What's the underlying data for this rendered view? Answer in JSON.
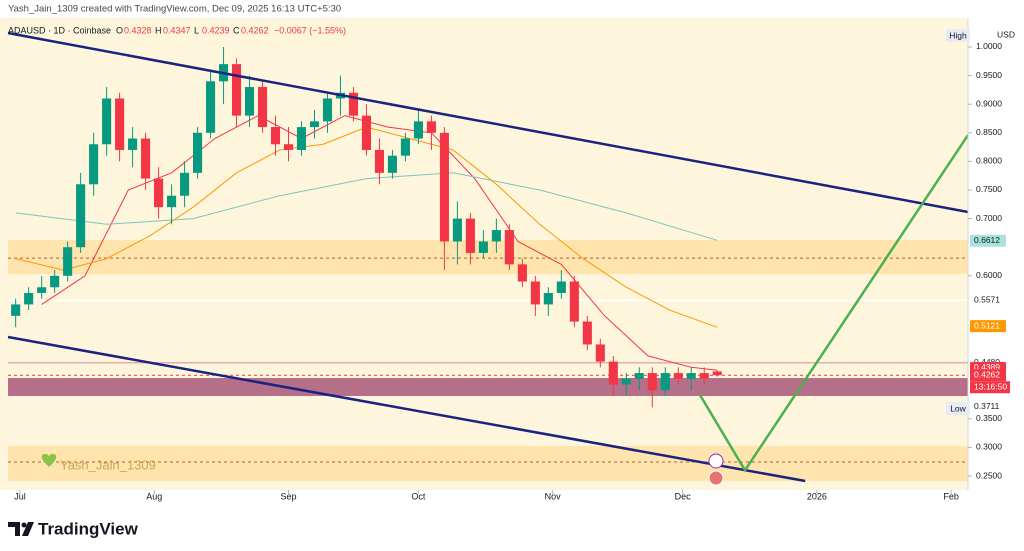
{
  "header": {
    "text": "Yash_Jain_1309 created with TradingView.com, Dec 09, 2025 16:13 UTC+5:30"
  },
  "footer": {
    "brand": "TradingView"
  },
  "watermark": "Yash_Jain_1309",
  "chart_data": {
    "type": "candlestick",
    "symbol": "ADAUSD · 1D · Coinbase",
    "ohlc_keys": [
      "O",
      "H",
      "L",
      "C"
    ],
    "change": "−0.0067 (−1.55%)",
    "currency": "USD",
    "high_label": "High",
    "low_label": "Low",
    "countdown": "13:16:50",
    "up_color": "#089981",
    "down_color": "#f23645",
    "xlim": [
      -2.77,
      218.9
    ],
    "ylim": [
      0.2343,
      1.0297
    ],
    "xticks": [
      {
        "value": 0,
        "label": "Jul"
      },
      {
        "value": 31,
        "label": "Aug"
      },
      {
        "value": 62,
        "label": "Sep"
      },
      {
        "value": 92,
        "label": "Oct"
      },
      {
        "value": 123,
        "label": "Nov"
      },
      {
        "value": 153,
        "label": "Dec"
      },
      {
        "value": 184,
        "label": "2026"
      },
      {
        "value": 215,
        "label": "Feb"
      }
    ],
    "yticks": [
      {
        "value": 1,
        "label": "1.0000"
      },
      {
        "value": 0.95,
        "label": "0.9500"
      },
      {
        "value": 0.9,
        "label": "0.9000"
      },
      {
        "value": 0.85,
        "label": "0.8500"
      },
      {
        "value": 0.8,
        "label": "0.8000"
      },
      {
        "value": 0.75,
        "label": "0.7500"
      },
      {
        "value": 0.7,
        "label": "0.7000"
      },
      {
        "value": 0.6,
        "label": "0.6000"
      },
      {
        "value": 0.35,
        "label": "0.3500"
      },
      {
        "value": 0.3,
        "label": "0.3000"
      },
      {
        "value": 0.25,
        "label": "0.2500"
      }
    ],
    "x": [
      -1,
      2,
      5,
      8,
      11,
      14,
      17,
      20,
      23,
      26,
      29,
      32,
      35,
      38,
      41,
      44,
      47,
      50,
      53,
      56,
      59,
      62,
      65,
      68,
      71,
      74,
      77,
      80,
      83,
      86,
      89,
      92,
      95,
      98,
      101,
      104,
      107,
      110,
      113,
      116,
      119,
      122,
      125,
      128,
      131,
      134,
      137,
      140,
      143,
      146,
      149,
      152,
      155,
      158,
      161
    ],
    "open": [
      0.53,
      0.55,
      0.57,
      0.58,
      0.6,
      0.65,
      0.76,
      0.83,
      0.91,
      0.82,
      0.84,
      0.77,
      0.72,
      0.74,
      0.78,
      0.85,
      0.94,
      0.97,
      0.88,
      0.93,
      0.86,
      0.83,
      0.82,
      0.86,
      0.87,
      0.91,
      0.92,
      0.88,
      0.82,
      0.78,
      0.81,
      0.84,
      0.87,
      0.85,
      0.66,
      0.7,
      0.64,
      0.66,
      0.68,
      0.62,
      0.59,
      0.55,
      0.57,
      0.59,
      0.52,
      0.48,
      0.45,
      0.41,
      0.42,
      0.43,
      0.4,
      0.43,
      0.42,
      0.43,
      0.4328
    ],
    "high": [
      0.56,
      0.58,
      0.6,
      0.61,
      0.66,
      0.78,
      0.85,
      0.93,
      0.92,
      0.86,
      0.85,
      0.79,
      0.76,
      0.8,
      0.86,
      0.96,
      1.0,
      0.98,
      0.95,
      0.94,
      0.88,
      0.86,
      0.87,
      0.89,
      0.92,
      0.95,
      0.93,
      0.9,
      0.84,
      0.82,
      0.85,
      0.89,
      0.88,
      0.86,
      0.73,
      0.71,
      0.68,
      0.7,
      0.69,
      0.63,
      0.6,
      0.58,
      0.61,
      0.6,
      0.53,
      0.49,
      0.46,
      0.43,
      0.44,
      0.44,
      0.44,
      0.44,
      0.44,
      0.44,
      0.4347
    ],
    "low": [
      0.51,
      0.54,
      0.56,
      0.57,
      0.59,
      0.64,
      0.74,
      0.81,
      0.8,
      0.79,
      0.75,
      0.7,
      0.69,
      0.72,
      0.77,
      0.84,
      0.9,
      0.86,
      0.86,
      0.85,
      0.81,
      0.8,
      0.81,
      0.84,
      0.85,
      0.88,
      0.87,
      0.81,
      0.76,
      0.77,
      0.8,
      0.83,
      0.82,
      0.61,
      0.62,
      0.62,
      0.63,
      0.64,
      0.61,
      0.58,
      0.53,
      0.53,
      0.56,
      0.51,
      0.47,
      0.44,
      0.39,
      0.39,
      0.4,
      0.37,
      0.39,
      0.41,
      0.4,
      0.41,
      0.4239
    ],
    "close": [
      0.55,
      0.57,
      0.58,
      0.6,
      0.65,
      0.76,
      0.83,
      0.91,
      0.82,
      0.84,
      0.77,
      0.72,
      0.74,
      0.78,
      0.85,
      0.94,
      0.97,
      0.88,
      0.93,
      0.86,
      0.83,
      0.82,
      0.86,
      0.87,
      0.91,
      0.92,
      0.88,
      0.82,
      0.78,
      0.81,
      0.84,
      0.87,
      0.85,
      0.66,
      0.7,
      0.64,
      0.66,
      0.68,
      0.62,
      0.59,
      0.55,
      0.57,
      0.59,
      0.52,
      0.48,
      0.45,
      0.41,
      0.42,
      0.43,
      0.4,
      0.43,
      0.42,
      0.43,
      0.42,
      0.4262
    ],
    "overlays": [
      {
        "color": "#f23645",
        "x": [
          5,
          15,
          25,
          35,
          45,
          55,
          65,
          75,
          85,
          95,
          105,
          115,
          125,
          135,
          145,
          155,
          161
        ],
        "values": [
          0.55,
          0.6,
          0.75,
          0.78,
          0.84,
          0.88,
          0.84,
          0.88,
          0.86,
          0.85,
          0.77,
          0.66,
          0.62,
          0.53,
          0.46,
          0.44,
          0.435
        ]
      },
      {
        "color": "#ff9800",
        "x": [
          -1,
          10,
          20,
          30,
          40,
          50,
          60,
          70,
          80,
          90,
          100,
          110,
          120,
          130,
          140,
          150,
          161
        ],
        "values": [
          0.63,
          0.61,
          0.63,
          0.67,
          0.72,
          0.78,
          0.82,
          0.83,
          0.86,
          0.84,
          0.82,
          0.76,
          0.69,
          0.63,
          0.58,
          0.54,
          0.51
        ]
      },
      {
        "color": "#7fc4be",
        "x": [
          -1,
          20,
          40,
          60,
          80,
          100,
          120,
          140,
          161
        ],
        "values": [
          0.71,
          0.69,
          0.7,
          0.74,
          0.77,
          0.78,
          0.75,
          0.71,
          0.662
        ]
      }
    ],
    "trend_lines": [
      {
        "color": "#1a237e",
        "x": [
          -2.77,
          218.9
        ],
        "values": [
          1.0245,
          0.7115
        ]
      },
      {
        "color": "#1a237e",
        "x": [
          -2.77,
          181.3
        ],
        "values": [
          0.493,
          0.2413
        ]
      },
      {
        "color": "#4caf50",
        "x": [
          157,
          167.4,
          218.9
        ],
        "values": [
          0.392,
          0.26,
          0.846
        ]
      }
    ],
    "zones": [
      {
        "from": 0.6031,
        "to": 0.6626,
        "color": "#ffe0a6"
      },
      {
        "from": 0.3899,
        "to": 0.4213,
        "color": "#a8577a"
      },
      {
        "from": 0.2412,
        "to": 0.3024,
        "color": "#ffe0a6"
      }
    ],
    "levels": [
      {
        "value": 0.631,
        "color": "#b06040",
        "dash": true
      },
      {
        "value": 0.2745,
        "color": "#b06040",
        "dash": true
      },
      {
        "value": 0.5571,
        "color": "#ffffff",
        "dash": false
      },
      {
        "value": 0.448,
        "color": "#e0b0b0",
        "dash": false
      },
      {
        "value": 0.4262,
        "color": "#f23645",
        "dash": true
      }
    ],
    "price_labels": [
      {
        "value": 0.6612,
        "label": "0.6612",
        "bg": "#a7e3dc",
        "fg": "#131722"
      },
      {
        "value": 0.5571,
        "label": "0.5571",
        "bg": "#ffffff",
        "fg": "#131722"
      },
      {
        "value": 0.5121,
        "label": "0.5121",
        "bg": "#ff9800",
        "fg": "#ffffff"
      },
      {
        "value": 0.448,
        "label": "0.4480",
        "bg": "#ffffff",
        "fg": "#131722"
      },
      {
        "value": 0.4389,
        "label": "0.4389",
        "bg": "#f23645",
        "fg": "#ffffff"
      },
      {
        "value": 0.4262,
        "label": "0.4262",
        "bg": "#f23645",
        "fg": "#ffffff"
      },
      {
        "value": 0.3711,
        "label": "0.3711",
        "bg": "#ffffff",
        "fg": "#131722"
      }
    ]
  }
}
